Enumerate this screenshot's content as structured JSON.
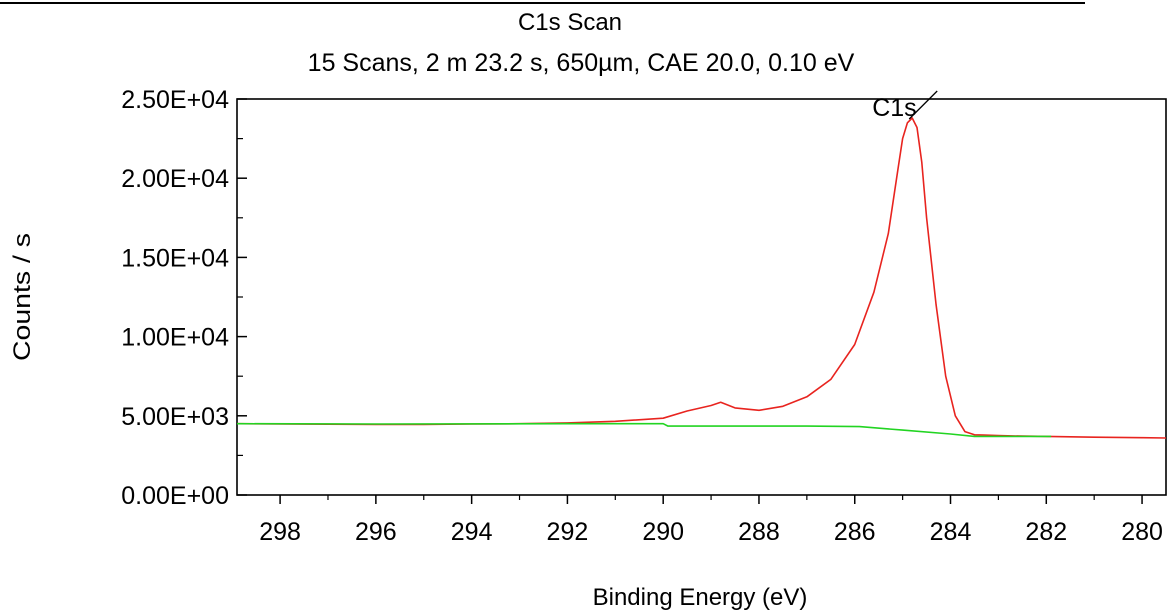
{
  "chart_data": {
    "type": "line",
    "title": "C1s Scan",
    "subtitle": "15 Scans,  2 m 23.2 s,  650µm,  CAE 20.0,  0.10 eV",
    "xlabel": "Binding Energy (eV)",
    "ylabel": "Counts / s",
    "x_reversed": true,
    "xlim": [
      298.9,
      279.5
    ],
    "ylim": [
      0,
      25000
    ],
    "x_ticks": [
      "298",
      "296",
      "294",
      "292",
      "290",
      "288",
      "286",
      "284",
      "282",
      "280"
    ],
    "y_ticks": [
      "0.00E+00",
      "5.00E+03",
      "1.00E+04",
      "1.50E+04",
      "2.00E+04",
      "2.50E+04"
    ],
    "grid": false,
    "series": [
      {
        "color": "#e8241f",
        "x": [
          298.9,
          298.0,
          297.0,
          296.0,
          295.0,
          294.0,
          293.0,
          292.0,
          291.0,
          290.0,
          289.5,
          289.0,
          288.8,
          288.5,
          288.0,
          287.5,
          287.0,
          286.5,
          286.0,
          285.6,
          285.3,
          285.1,
          285.0,
          284.9,
          284.8,
          284.7,
          284.6,
          284.5,
          284.3,
          284.1,
          283.9,
          283.7,
          283.5,
          283.3,
          283.0,
          282.5,
          282.0,
          281.0,
          280.0,
          279.5
        ],
        "y": [
          4500,
          4480,
          4470,
          4460,
          4460,
          4480,
          4500,
          4550,
          4650,
          4850,
          5300,
          5650,
          5850,
          5500,
          5350,
          5600,
          6200,
          7300,
          9500,
          12800,
          16500,
          20500,
          22500,
          23500,
          23800,
          23200,
          21000,
          17500,
          12000,
          7500,
          5000,
          4000,
          3800,
          3780,
          3750,
          3720,
          3700,
          3650,
          3620,
          3600
        ]
      },
      {
        "color": "#22d422",
        "x": [
          298.9,
          296.0,
          292.0,
          290.0,
          289.9,
          287.0,
          285.9,
          285.0,
          284.0,
          283.5,
          282.0,
          281.9
        ],
        "y": [
          4500,
          4480,
          4500,
          4500,
          4350,
          4350,
          4320,
          4100,
          3850,
          3700,
          3700,
          3700
        ]
      }
    ],
    "annotations": [
      {
        "text": "C1s",
        "x": 284.8,
        "y": 23800
      }
    ]
  }
}
